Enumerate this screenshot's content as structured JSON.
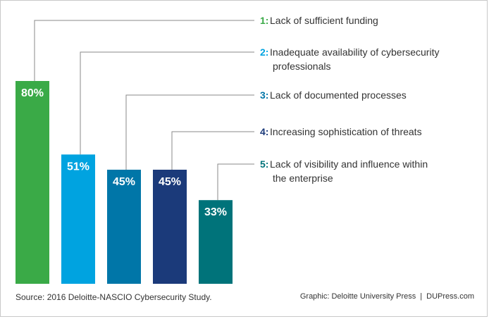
{
  "chart_data": {
    "type": "bar",
    "categories": [
      "Lack of sufficient funding",
      "Inadequate availability of cybersecurity professionals",
      "Lack of documented processes",
      "Increasing sophistication of threats",
      "Lack of visibility and influence within the enterprise"
    ],
    "ranks": [
      "1:",
      "2:",
      "3:",
      "4:",
      "5:"
    ],
    "label_lines": [
      [
        "Lack of sufficient funding"
      ],
      [
        "Inadequate availability of cybersecurity",
        "professionals"
      ],
      [
        "Lack of documented processes"
      ],
      [
        "Increasing sophistication of threats"
      ],
      [
        "Lack of visibility and influence within",
        "the enterprise"
      ]
    ],
    "values": [
      80,
      51,
      45,
      45,
      33
    ],
    "value_labels": [
      "80%",
      "51%",
      "45%",
      "45%",
      "33%"
    ],
    "colors": [
      "#3aaa47",
      "#00a3e0",
      "#0076a8",
      "#1b3a7a",
      "#00737a"
    ],
    "ylim": [
      0,
      100
    ],
    "grid": false,
    "legend": "right"
  },
  "footer": {
    "source": "Source: 2016 Deloitte-NASCIO Cybersecurity Study.",
    "graphic": "Graphic: Deloitte University Press",
    "separator": "|",
    "site": "DUPress.com"
  }
}
